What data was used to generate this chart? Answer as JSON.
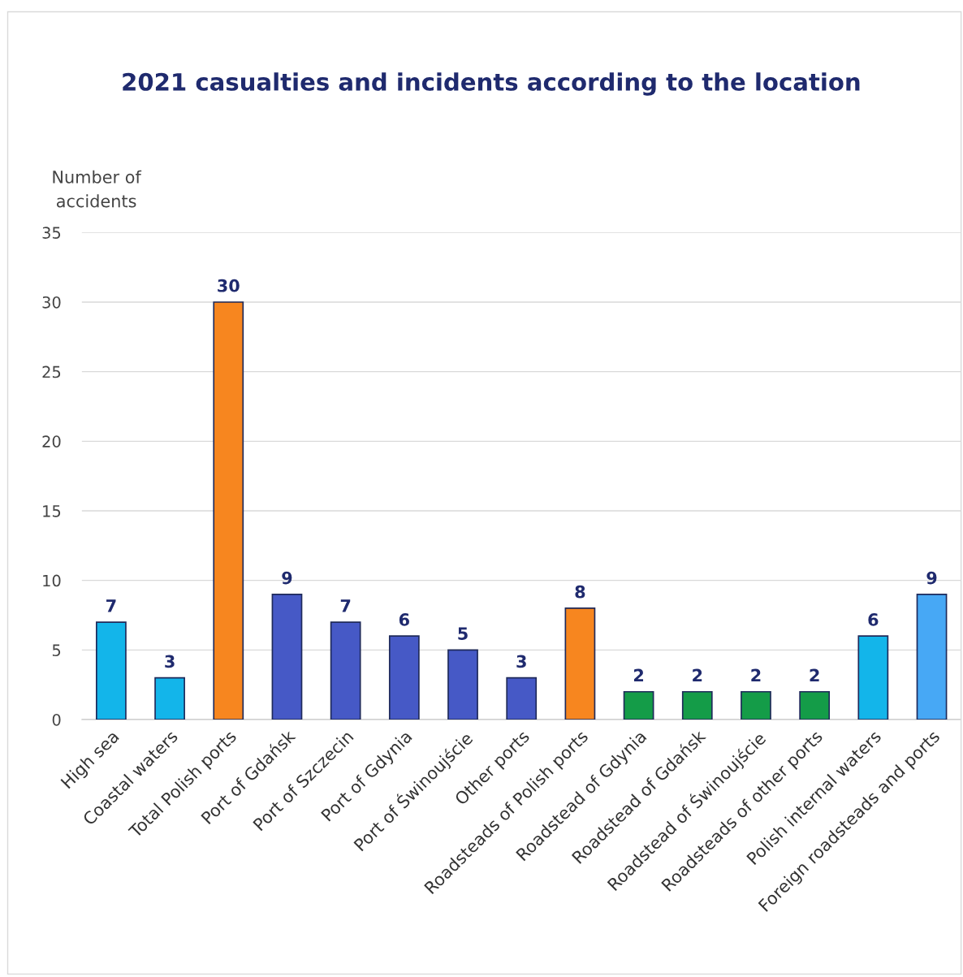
{
  "chart_data": {
    "type": "bar",
    "title": "2021 casualties and incidents according to the location",
    "ylabel": "Number of\naccidents",
    "categories": [
      "High sea",
      "Coastal waters",
      "Total Polish ports",
      "Port of Gdańsk",
      "Port of Szczecin",
      "Port of Gdynia",
      "Port of Świnoujście",
      "Other ports",
      "Roadsteads of Polish ports",
      "Roadstead of Gdynia",
      "Roadstead of Gdańsk",
      "Roadstead of Świnoujście",
      "Roadsteads of other ports",
      "Polish internal waters",
      "Foreign roadsteads and ports"
    ],
    "values": [
      7,
      3,
      30,
      9,
      7,
      6,
      5,
      3,
      8,
      2,
      2,
      2,
      2,
      6,
      9
    ],
    "colors": [
      "#13b5ea",
      "#13b5ea",
      "#f7861f",
      "#4659c6",
      "#4659c6",
      "#4659c6",
      "#4659c6",
      "#4659c6",
      "#f7861f",
      "#149c48",
      "#149c48",
      "#149c48",
      "#149c48",
      "#13b5ea",
      "#47a8f5"
    ],
    "ylim": [
      0,
      35
    ],
    "yticks": [
      0,
      5,
      10,
      15,
      20,
      25,
      30,
      35
    ],
    "grid": "y",
    "data_labels": true
  }
}
